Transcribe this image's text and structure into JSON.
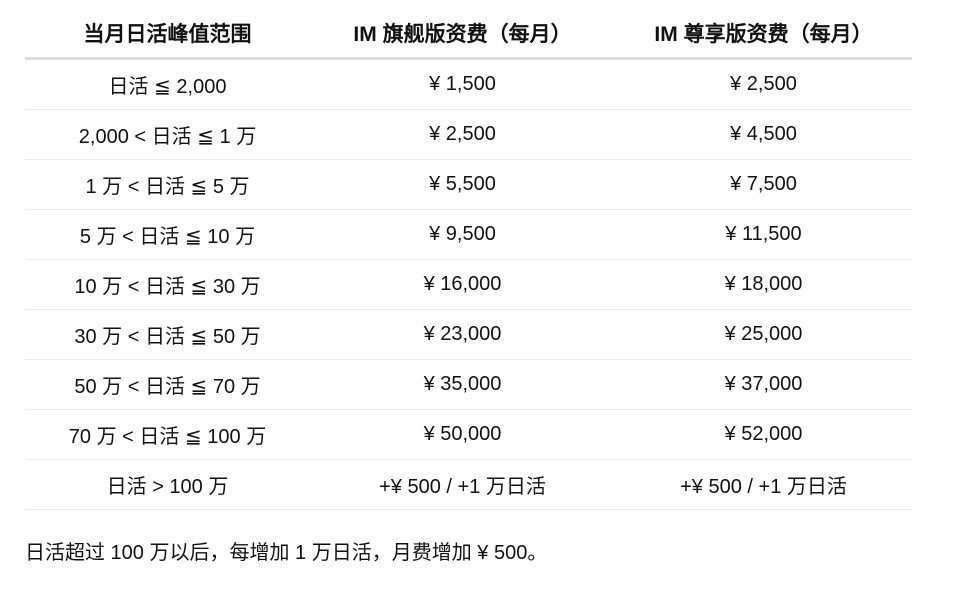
{
  "table": {
    "headers": [
      "当月日活峰值范围",
      "IM 旗舰版资费（每月）",
      "IM 尊享版资费（每月）"
    ],
    "rows": [
      [
        "日活 ≦ 2,000",
        "¥ 1,500",
        "¥ 2,500"
      ],
      [
        "2,000 < 日活 ≦ 1 万",
        "¥ 2,500",
        "¥ 4,500"
      ],
      [
        "1 万 < 日活 ≦ 5 万",
        "¥ 5,500",
        "¥ 7,500"
      ],
      [
        "5 万 < 日活 ≦ 10 万",
        "¥ 9,500",
        "¥ 11,500"
      ],
      [
        "10 万 < 日活 ≦ 30 万",
        "¥ 16,000",
        "¥ 18,000"
      ],
      [
        "30 万 < 日活 ≦ 50 万",
        "¥ 23,000",
        "¥ 25,000"
      ],
      [
        "50 万 < 日活 ≦ 70 万",
        "¥ 35,000",
        "¥ 37,000"
      ],
      [
        "70 万 < 日活 ≦ 100 万",
        "¥ 50,000",
        "¥ 52,000"
      ],
      [
        "日活 > 100 万",
        "+¥ 500 / +1 万日活",
        "+¥ 500 / +1 万日活"
      ]
    ]
  },
  "footnote": "日活超过 100 万以后，每增加 1 万日活，月费增加 ¥ 500。",
  "colors": {
    "text": "#111111",
    "header_border": "#dcdcdc",
    "row_border": "#ebebeb",
    "background": "#ffffff"
  }
}
